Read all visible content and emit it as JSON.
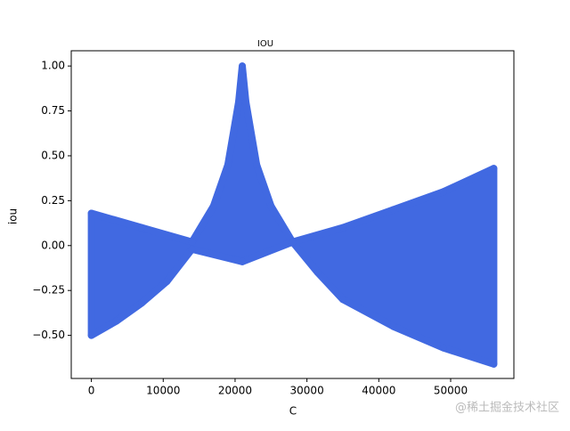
{
  "chart_data": {
    "type": "band",
    "title": "IOU",
    "x_label": "C",
    "y_label": "iou",
    "color": "#4169e1",
    "upper": {
      "x": [
        0,
        7000,
        14000,
        17000,
        19000,
        20500,
        21000,
        21500,
        23000,
        25000,
        28000,
        35000,
        42000,
        49000,
        56000
      ],
      "y": [
        0.18,
        0.1,
        0.02,
        0.22,
        0.45,
        0.8,
        1.0,
        0.8,
        0.45,
        0.22,
        0.02,
        0.1,
        0.2,
        0.3,
        0.43
      ]
    },
    "lower": {
      "x": [
        0,
        3500,
        7000,
        10500,
        14000,
        21000,
        28000,
        31500,
        35000,
        42000,
        49000,
        56000
      ],
      "y": [
        -0.5,
        -0.42,
        -0.32,
        -0.2,
        -0.02,
        -0.09,
        0.02,
        -0.15,
        -0.3,
        -0.45,
        -0.57,
        -0.66
      ]
    },
    "xlim": [
      -2800,
      58800
    ],
    "ylim": [
      -0.74,
      1.085
    ],
    "xticks": [
      0,
      10000,
      20000,
      30000,
      40000,
      50000
    ],
    "yticks": [
      {
        "value": -0.5,
        "label": "−0.50"
      },
      {
        "value": -0.25,
        "label": "−0.25"
      },
      {
        "value": 0,
        "label": "0.00"
      },
      {
        "value": 0.25,
        "label": "0.25"
      },
      {
        "value": 0.5,
        "label": "0.50"
      },
      {
        "value": 0.75,
        "label": "0.75"
      },
      {
        "value": 1.0,
        "label": "1.00"
      }
    ],
    "watermark": "@稀土掘金技术社区"
  }
}
